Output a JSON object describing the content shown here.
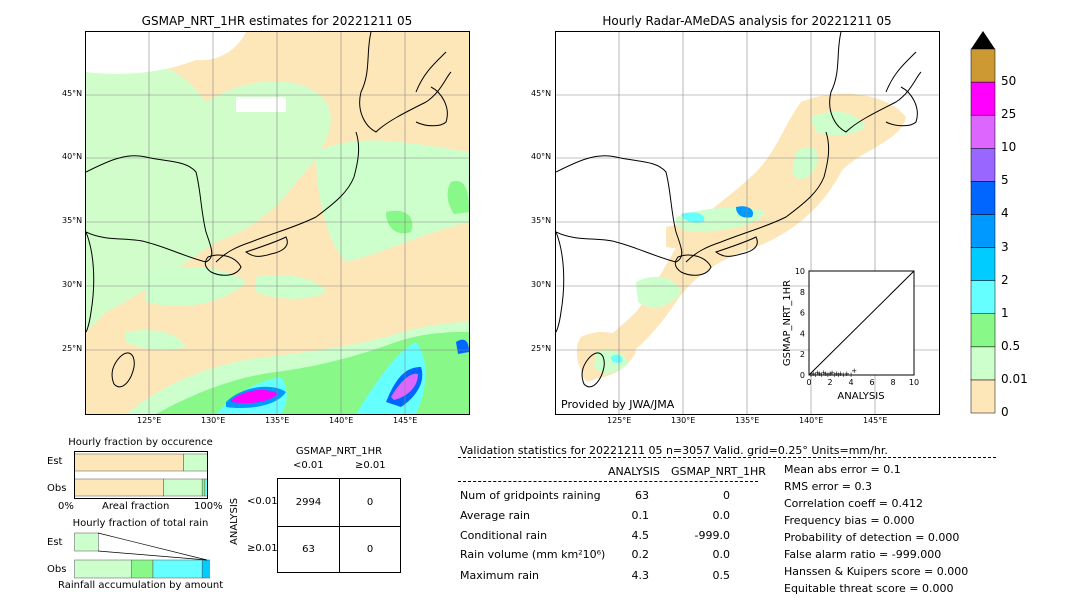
{
  "left_map": {
    "title": "GSMAP_NRT_1HR estimates for 20221211 05",
    "lat_labels": [
      "45°N",
      "40°N",
      "35°N",
      "30°N",
      "25°N"
    ],
    "lon_labels": [
      "125°E",
      "130°E",
      "135°E",
      "140°E",
      "145°E"
    ]
  },
  "right_map": {
    "title": "Hourly Radar-AMeDAS analysis for 20221211 05",
    "lat_labels": [
      "45°N",
      "40°N",
      "35°N",
      "30°N",
      "25°N"
    ],
    "lon_labels": [
      "125°E",
      "130°E",
      "135°E",
      "140°E",
      "145°E"
    ],
    "credit": "Provided by JWA/JMA"
  },
  "colorbar": {
    "labels": [
      "0",
      "0.01",
      "0.5",
      "1",
      "2",
      "3",
      "4",
      "5",
      "10",
      "25",
      "50"
    ],
    "colors": [
      "#fde6b8",
      "#ccffcc",
      "#88f888",
      "#66ffff",
      "#00ccff",
      "#0099ff",
      "#0066ff",
      "#9966ff",
      "#dd66ff",
      "#ff00ff",
      "#cc9933"
    ],
    "over_color": "#000000"
  },
  "inset": {
    "xlabel": "ANALYSIS",
    "ylabel": "GSMAP_NRT_1HR",
    "ticks": [
      "0",
      "2",
      "4",
      "6",
      "8",
      "10"
    ]
  },
  "fraction_occurrence": {
    "title": "Hourly fraction by occurence",
    "row_labels": [
      "Est",
      "Obs"
    ],
    "axis_left": "0%",
    "axis_mid": "Areal fraction",
    "axis_right": "100%"
  },
  "fraction_total": {
    "title": "Hourly fraction of total rain",
    "row_labels": [
      "Est",
      "Obs"
    ],
    "footer": "Rainfall accumulation by amount"
  },
  "contingency": {
    "col_header": "GSMAP_NRT_1HR",
    "col_labels": [
      "<0.01",
      "≥0.01"
    ],
    "row_header": "ANALYSIS",
    "row_labels": [
      "<0.01",
      "≥0.01"
    ],
    "cells": [
      [
        "2994",
        "0"
      ],
      [
        "63",
        "0"
      ]
    ]
  },
  "validation": {
    "header": "Validation statistics for 20221211 05  n=3057 Valid. grid=0.25° Units=mm/hr.",
    "col_analysis": "ANALYSIS",
    "col_gsmap": "GSMAP_NRT_1HR",
    "rows": [
      {
        "label": "Num of gridpoints raining",
        "analysis": "63",
        "gsmap": "0"
      },
      {
        "label": "Average rain",
        "analysis": "0.1",
        "gsmap": "0.0"
      },
      {
        "label": "Conditional rain",
        "analysis": "4.5",
        "gsmap": "-999.0"
      },
      {
        "label": "Rain volume (mm km²10⁶)",
        "analysis": "0.2",
        "gsmap": "0.0"
      },
      {
        "label": "Maximum rain",
        "analysis": "4.3",
        "gsmap": "0.5"
      }
    ],
    "scores": [
      "Mean abs error =    0.1",
      "RMS error =    0.3",
      "Correlation coeff =  0.412",
      "Frequency bias =  0.000",
      "Probability of detection =  0.000",
      "False alarm ratio = -999.000",
      "Hanssen & Kuipers score =  0.000",
      "Equitable threat score =  0.000"
    ]
  },
  "chart_data": [
    {
      "type": "bar",
      "title": "Hourly fraction by occurence",
      "categories": [
        "Est",
        "Obs"
      ],
      "series": [
        {
          "name": "0",
          "values": [
            0.82,
            0.67
          ]
        },
        {
          "name": "0.01",
          "values": [
            0.18,
            0.29
          ]
        },
        {
          "name": "0.5",
          "values": [
            0.0,
            0.02
          ]
        },
        {
          "name": "1",
          "values": [
            0.0,
            0.02
          ]
        }
      ]
    },
    {
      "type": "bar",
      "title": "Hourly fraction of total rain",
      "categories": [
        "Est",
        "Obs"
      ],
      "series": [
        {
          "name": "0.01",
          "values": [
            0.18,
            0.43
          ]
        },
        {
          "name": "0.5",
          "values": [
            0.0,
            0.16
          ]
        },
        {
          "name": "1",
          "values": [
            0.0,
            0.37
          ]
        },
        {
          "name": "2",
          "values": [
            0.0,
            0.2
          ]
        },
        {
          "name": "3",
          "values": [
            0.0,
            0.04
          ]
        }
      ]
    },
    {
      "type": "scatter",
      "xlabel": "ANALYSIS",
      "ylabel": "GSMAP_NRT_1HR",
      "xlim": [
        0,
        10
      ],
      "ylim": [
        0,
        10
      ],
      "points": [
        [
          0.2,
          0.1
        ],
        [
          0.4,
          0.2
        ],
        [
          0.6,
          0.1
        ],
        [
          0.8,
          0.3
        ],
        [
          1.0,
          0.2
        ],
        [
          1.2,
          0.1
        ],
        [
          1.4,
          0.3
        ],
        [
          1.6,
          0.2
        ],
        [
          1.8,
          0.1
        ],
        [
          2.0,
          0.2
        ],
        [
          2.2,
          0.3
        ],
        [
          2.4,
          0.1
        ],
        [
          2.6,
          0.2
        ],
        [
          2.8,
          0.1
        ],
        [
          3.0,
          0.2
        ],
        [
          3.3,
          0.1
        ],
        [
          3.6,
          0.2
        ],
        [
          4.0,
          0.1
        ],
        [
          4.3,
          0.5
        ]
      ]
    }
  ]
}
